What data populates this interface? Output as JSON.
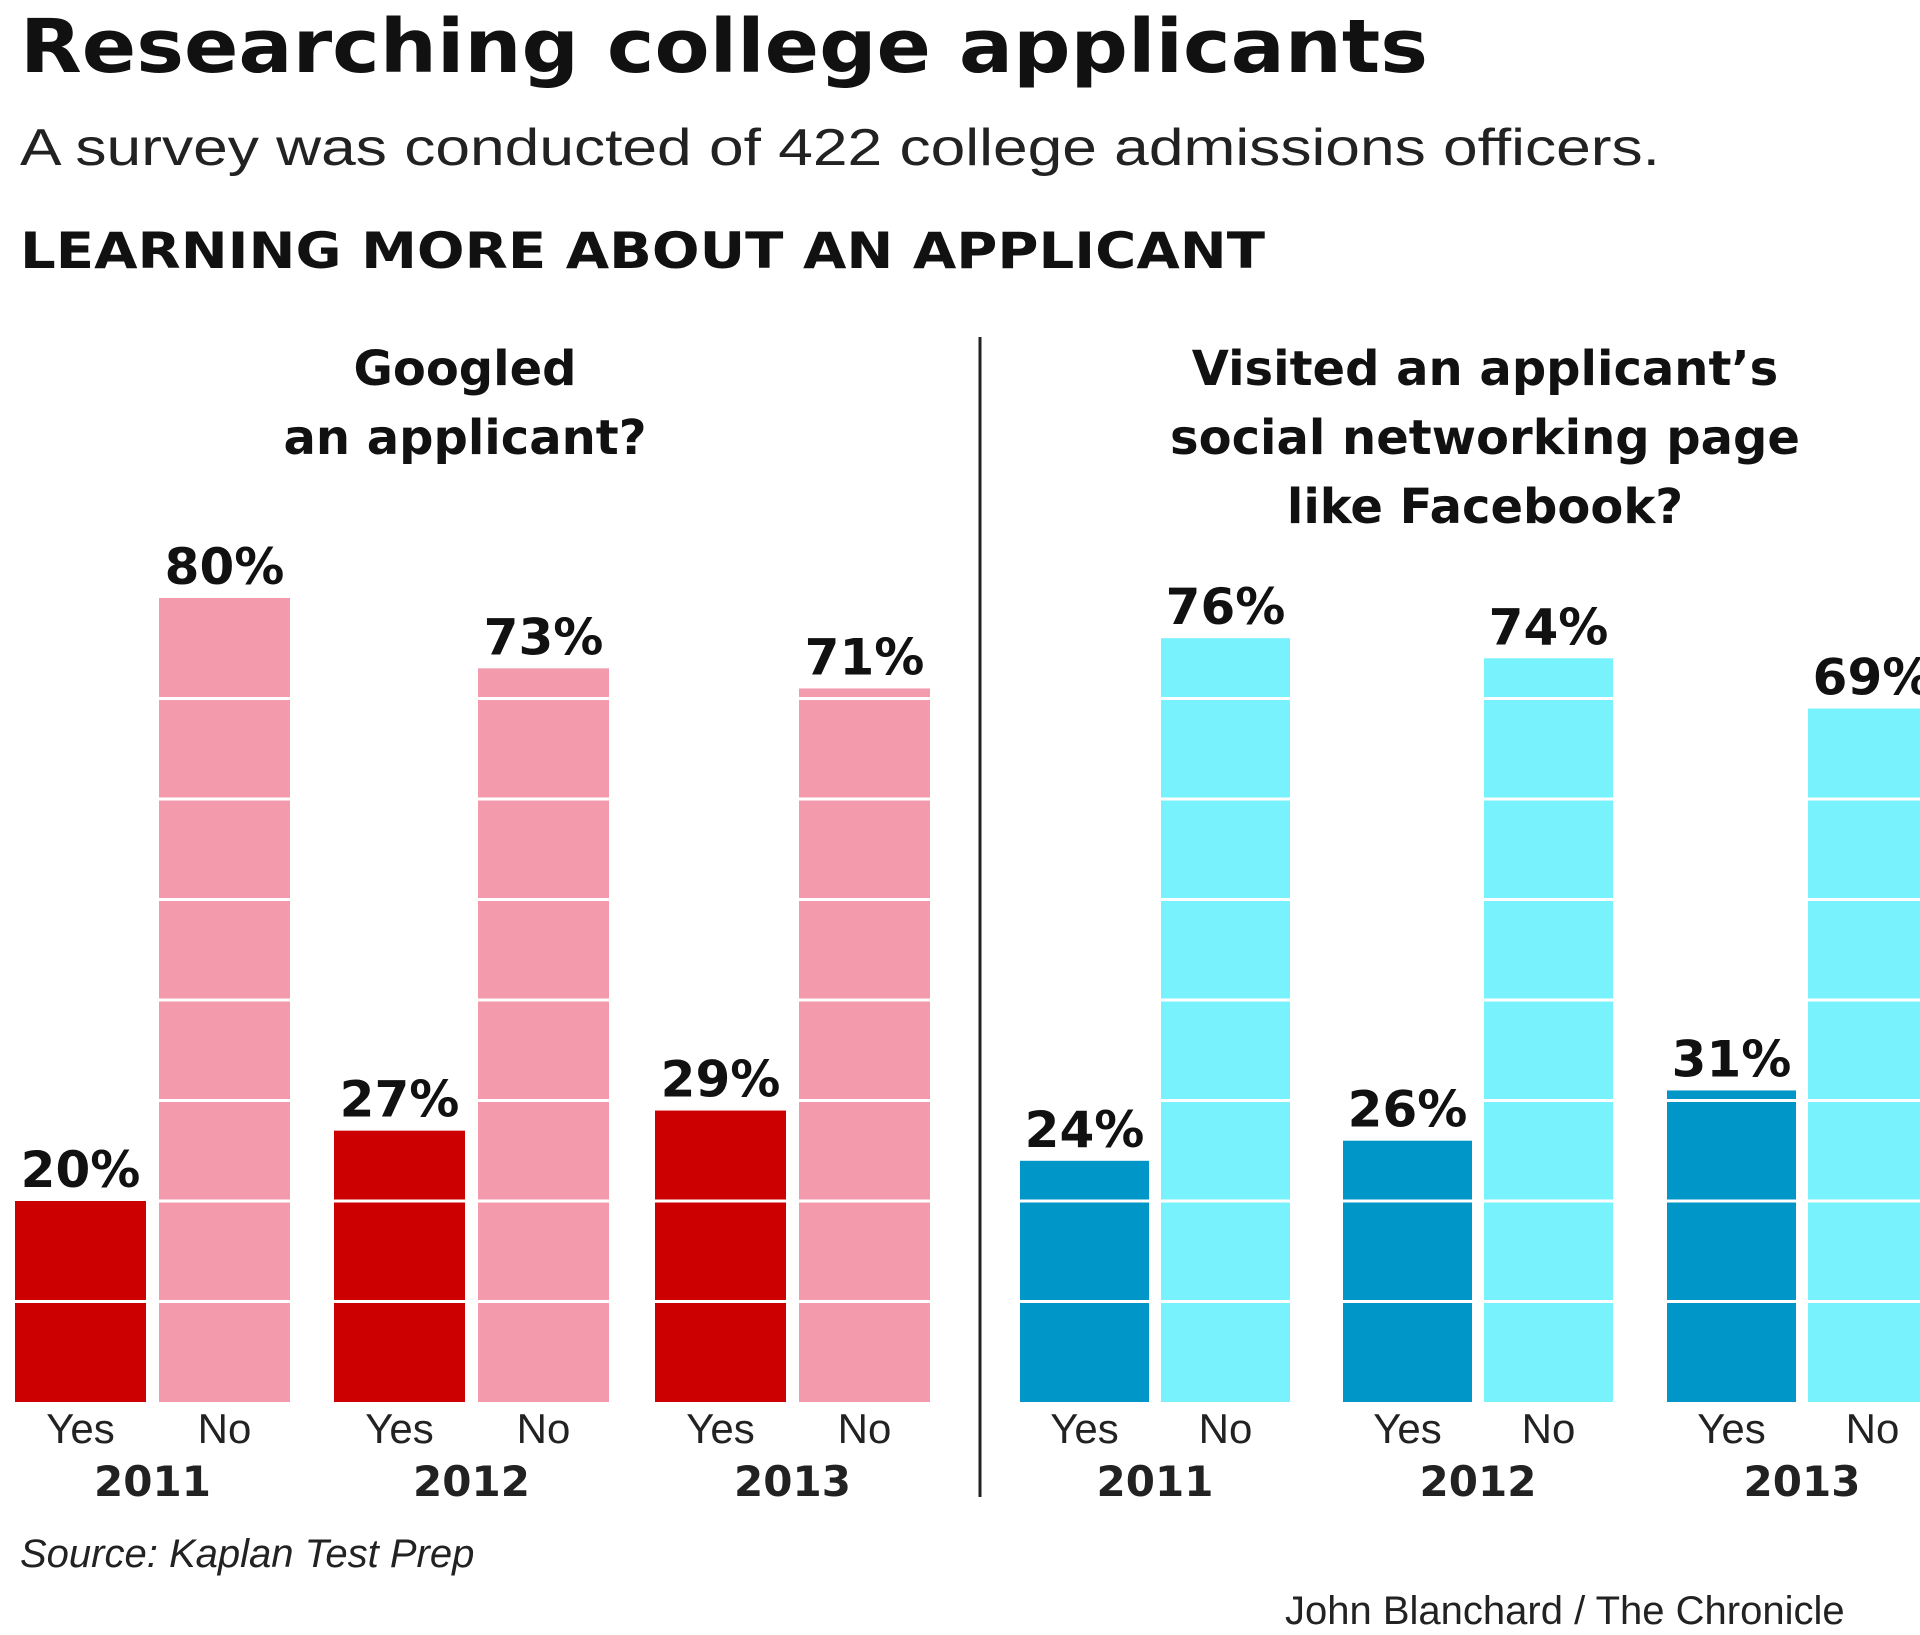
{
  "title": "Researching college applicants",
  "subtitle": "A survey was conducted of 422 college admissions officers.",
  "section_heading": "LEARNING MORE ABOUT AN APPLICANT",
  "source": "Source: Kaplan Test Prep",
  "credit": "John Blanchard / The Chronicle",
  "chart_data": [
    {
      "type": "bar",
      "title_lines": [
        "Googled",
        "an applicant?"
      ],
      "categories": [
        "2011",
        "2012",
        "2013"
      ],
      "series": [
        {
          "name": "Yes",
          "values": [
            20,
            27,
            29
          ],
          "color": "#cc0000"
        },
        {
          "name": "No",
          "values": [
            80,
            73,
            71
          ],
          "color": "#f49aad"
        }
      ],
      "unit": "%",
      "ylim": [
        0,
        100
      ],
      "grid": true
    },
    {
      "type": "bar",
      "title_lines": [
        "Visited an applicant’s",
        "social networking page",
        "like Facebook?"
      ],
      "categories": [
        "2011",
        "2012",
        "2013"
      ],
      "series": [
        {
          "name": "Yes",
          "values": [
            24,
            26,
            31
          ],
          "color": "#0096c8"
        },
        {
          "name": "No",
          "values": [
            76,
            74,
            69
          ],
          "color": "#78f2fc"
        }
      ],
      "unit": "%",
      "ylim": [
        0,
        100
      ],
      "grid": true
    }
  ]
}
